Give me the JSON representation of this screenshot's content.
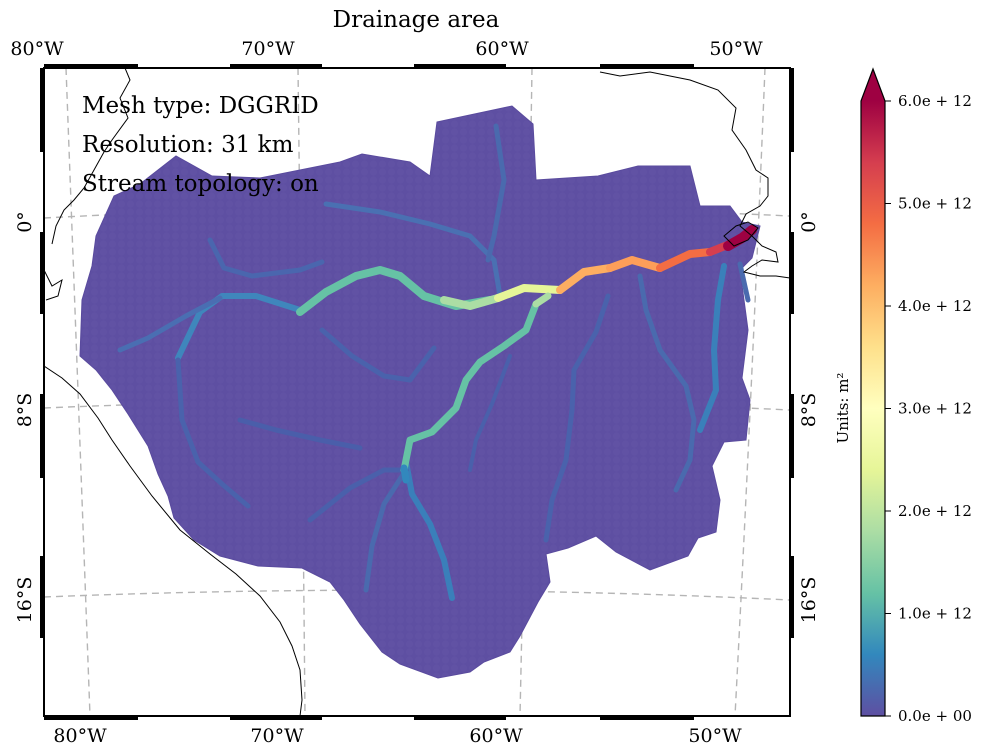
{
  "title": "Drainage area",
  "annotations": {
    "mesh_type": "Mesh type: DGGRID",
    "resolution": "Resolution: 31 km",
    "stream_topology": "Stream topology: on"
  },
  "axes": {
    "lon_ticks_top": [
      "80°W",
      "70°W",
      "60°W",
      "50°W"
    ],
    "lon_ticks_bottom": [
      "80°W",
      "70°W",
      "60°W",
      "50°W"
    ],
    "lat_ticks_left": [
      "0°",
      "8°S",
      "16°S"
    ],
    "lat_ticks_right": [
      "0°",
      "8°S",
      "16°S"
    ]
  },
  "colorbar": {
    "label": "Units: m²",
    "ticks": [
      "0.0e + 00",
      "1.0e + 12",
      "2.0e + 12",
      "3.0e + 12",
      "4.0e + 12",
      "5.0e + 12",
      "6.0e + 12"
    ],
    "colormap": "Spectral_r",
    "extend": "max",
    "vmin": 0,
    "vmax": 6000000000000.0
  },
  "colors": {
    "basin_fill": "#5e4fa2",
    "gridline": "#b5b5b5",
    "coastline": "#000000",
    "frame": "#000000"
  }
}
